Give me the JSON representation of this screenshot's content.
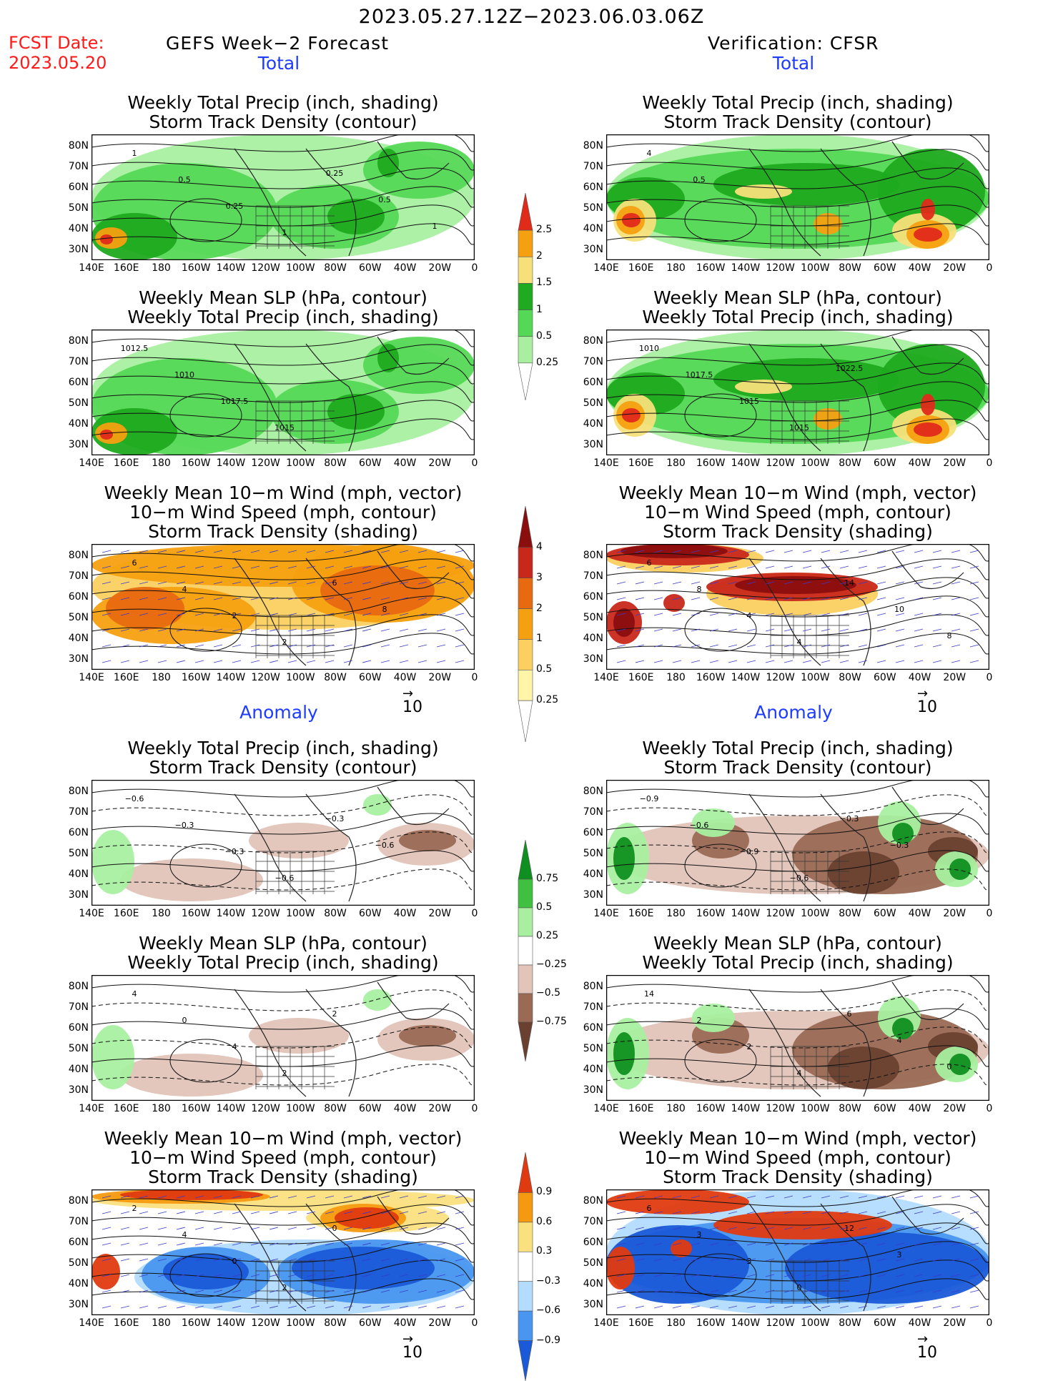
{
  "title": "2023.05.27.12Z−2023.06.03.06Z",
  "fcst_label": "FCST Date:",
  "fcst_date": "2023.05.20",
  "left_header": "GEFS Week−2 Forecast",
  "right_header": "Verification: CFSR",
  "section_total": "Total",
  "section_anomaly": "Anomaly",
  "panel_titles": {
    "precip": [
      "Weekly Total Precip (inch, shading)",
      "Storm Track Density (contour)"
    ],
    "slp": [
      "Weekly Mean SLP (hPa, contour)",
      "Weekly Total Precip (inch, shading)"
    ],
    "wind": [
      "Weekly Mean 10−m Wind (mph, vector)",
      "10−m Wind Speed (mph, contour)",
      "Storm Track Density (shading)"
    ]
  },
  "lat_labels": [
    "80N",
    "70N",
    "60N",
    "50N",
    "40N",
    "30N"
  ],
  "lon_labels": [
    "140E",
    "160E",
    "180",
    "160W",
    "140W",
    "120W",
    "100W",
    "80W",
    "60W",
    "40W",
    "20W",
    "0"
  ],
  "vector_reference": "10",
  "colorbars": {
    "total_precip": {
      "labels": [
        "2.5",
        "2",
        "1.5",
        "1",
        "0.5",
        "0.25"
      ],
      "colors": [
        "#ffffff",
        "#a8f0a0",
        "#55d855",
        "#1faa1f",
        "#f7e07a",
        "#f5a010",
        "#e02a1a"
      ]
    },
    "total_storm": {
      "labels": [
        "4",
        "3",
        "2",
        "1",
        "0.5",
        "0.25"
      ],
      "colors": [
        "#ffffff",
        "#fff4a8",
        "#fbd060",
        "#f5a010",
        "#e86a10",
        "#c8281a",
        "#8a0e0e"
      ]
    },
    "anom_precip": {
      "labels": [
        "0.75",
        "0.5",
        "0.25",
        "−0.25",
        "−0.5",
        "−0.75"
      ],
      "colors": [
        "#6a4030",
        "#9a6a55",
        "#e2c4b8",
        "#ffffff",
        "#a8f0a0",
        "#40c040",
        "#0f8f1f"
      ]
    },
    "anom_storm": {
      "labels": [
        "0.9",
        "0.6",
        "0.3",
        "−0.3",
        "−0.6",
        "−0.9"
      ],
      "colors": [
        "#1a5ad8",
        "#4896f0",
        "#b4dcff",
        "#ffffff",
        "#fbe080",
        "#f59a10",
        "#e03a10"
      ]
    }
  },
  "contour_labels": {
    "gefs_total_precip": [
      "1",
      "0.5",
      "0.25",
      "1",
      "0.25",
      "0.5",
      "1"
    ],
    "cfsr_total_precip": [
      "4",
      "0.5"
    ],
    "gefs_total_slp": [
      "1012.5",
      "1010",
      "1017.5",
      "1015"
    ],
    "cfsr_total_slp": [
      "1010",
      "1017.5",
      "1015",
      "1015",
      "1022.5"
    ],
    "gefs_total_wind": [
      "6",
      "4",
      "2",
      "2",
      "6",
      "8"
    ],
    "cfsr_total_wind": [
      "6",
      "8",
      "4",
      "4",
      "14",
      "10",
      "8",
      "6"
    ],
    "gefs_anom_precip": [
      "−0.6",
      "−0.3",
      "−0.3",
      "−0.6",
      "−0.3",
      "−0.6"
    ],
    "cfsr_anom_precip": [
      "−0.9",
      "−0.6",
      "−0.9",
      "−0.6",
      "−0.3",
      "−0.3"
    ],
    "gefs_anom_slp": [
      "4",
      "0",
      "4",
      "2",
      "2"
    ],
    "cfsr_anom_slp": [
      "14",
      "2",
      "2",
      "4",
      "6",
      "4",
      "0"
    ],
    "gefs_anom_wind": [
      "2",
      "4",
      "0",
      "2",
      "0"
    ],
    "cfsr_anom_wind": [
      "6",
      "3",
      "3",
      "0",
      "12",
      "3"
    ]
  },
  "colors": {
    "title_red": "#ff1a1a",
    "section_blue": "#1e3cff",
    "vector_blue": "#3a3ac8"
  }
}
